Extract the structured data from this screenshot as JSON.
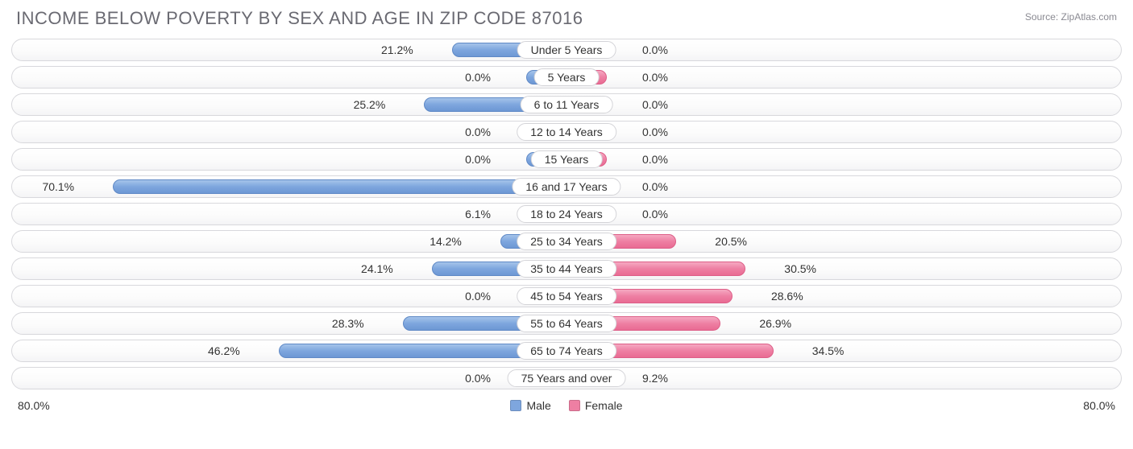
{
  "title": "INCOME BELOW POVERTY BY SEX AND AGE IN ZIP CODE 87016",
  "source": "Source: ZipAtlas.com",
  "chart": {
    "type": "diverging-bar",
    "axis_max_percent": 80.0,
    "axis_label_left": "80.0%",
    "axis_label_right": "80.0%",
    "min_bar_percent": 10.0,
    "colors": {
      "male_fill": "#7ea6de",
      "male_border": "#5f89c6",
      "female_fill": "#ee7fa3",
      "female_border": "#dd5e87",
      "row_border": "#d8d8dc",
      "text": "#333333",
      "title": "#6a6a72",
      "source": "#8a8a92",
      "background": "#ffffff"
    },
    "legend": {
      "male": "Male",
      "female": "Female"
    },
    "rows": [
      {
        "label": "Under 5 Years",
        "male": 21.2,
        "female": 0.0,
        "male_label": "21.2%",
        "female_label": "0.0%"
      },
      {
        "label": "5 Years",
        "male": 0.0,
        "female": 0.0,
        "male_label": "0.0%",
        "female_label": "0.0%"
      },
      {
        "label": "6 to 11 Years",
        "male": 25.2,
        "female": 0.0,
        "male_label": "25.2%",
        "female_label": "0.0%"
      },
      {
        "label": "12 to 14 Years",
        "male": 0.0,
        "female": 0.0,
        "male_label": "0.0%",
        "female_label": "0.0%"
      },
      {
        "label": "15 Years",
        "male": 0.0,
        "female": 0.0,
        "male_label": "0.0%",
        "female_label": "0.0%"
      },
      {
        "label": "16 and 17 Years",
        "male": 70.1,
        "female": 0.0,
        "male_label": "70.1%",
        "female_label": "0.0%"
      },
      {
        "label": "18 to 24 Years",
        "male": 6.1,
        "female": 0.0,
        "male_label": "6.1%",
        "female_label": "0.0%"
      },
      {
        "label": "25 to 34 Years",
        "male": 14.2,
        "female": 20.5,
        "male_label": "14.2%",
        "female_label": "20.5%"
      },
      {
        "label": "35 to 44 Years",
        "male": 24.1,
        "female": 30.5,
        "male_label": "24.1%",
        "female_label": "30.5%"
      },
      {
        "label": "45 to 54 Years",
        "male": 0.0,
        "female": 28.6,
        "male_label": "0.0%",
        "female_label": "28.6%"
      },
      {
        "label": "55 to 64 Years",
        "male": 28.3,
        "female": 26.9,
        "male_label": "28.3%",
        "female_label": "26.9%"
      },
      {
        "label": "65 to 74 Years",
        "male": 46.2,
        "female": 34.5,
        "male_label": "46.2%",
        "female_label": "34.5%"
      },
      {
        "label": "75 Years and over",
        "male": 0.0,
        "female": 9.2,
        "male_label": "0.0%",
        "female_label": "9.2%"
      }
    ]
  }
}
